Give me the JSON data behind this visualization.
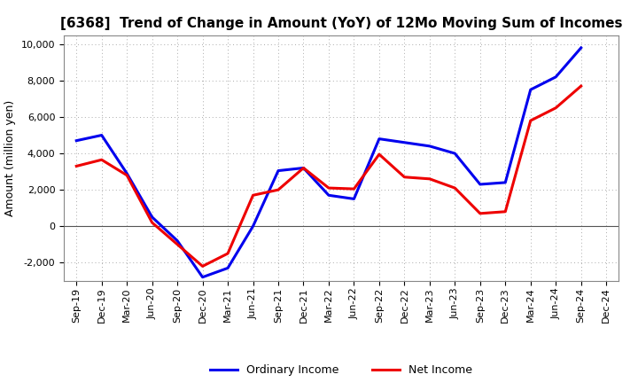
{
  "title": "[6368]  Trend of Change in Amount (YoY) of 12Mo Moving Sum of Incomes",
  "ylabel": "Amount (million yen)",
  "labels": [
    "Sep-19",
    "Dec-19",
    "Mar-20",
    "Jun-20",
    "Sep-20",
    "Dec-20",
    "Mar-21",
    "Jun-21",
    "Sep-21",
    "Dec-21",
    "Mar-22",
    "Jun-22",
    "Sep-22",
    "Dec-22",
    "Mar-23",
    "Jun-23",
    "Sep-23",
    "Dec-23",
    "Mar-24",
    "Jun-24",
    "Sep-24",
    "Dec-24"
  ],
  "ordinary_income": [
    4700,
    5000,
    2900,
    500,
    -800,
    -2800,
    -2300,
    0,
    3050,
    3200,
    1700,
    1500,
    4800,
    4600,
    4400,
    4000,
    2300,
    2400,
    7500,
    8200,
    9800,
    null
  ],
  "net_income": [
    3300,
    3650,
    2800,
    200,
    -1000,
    -2200,
    -1500,
    1700,
    2000,
    3200,
    2100,
    2050,
    3950,
    2700,
    2600,
    2100,
    700,
    800,
    5800,
    6500,
    7700,
    null
  ],
  "ordinary_color": "#0000EE",
  "net_color": "#EE0000",
  "ylim": [
    -3000,
    10500
  ],
  "yticks": [
    -2000,
    0,
    2000,
    4000,
    6000,
    8000,
    10000
  ],
  "background_color": "#FFFFFF",
  "plot_bg_color": "#FFFFFF",
  "grid_color": "#AAAAAA",
  "spine_color": "#888888",
  "legend_labels": [
    "Ordinary Income",
    "Net Income"
  ],
  "title_fontsize": 11,
  "axis_label_fontsize": 9,
  "tick_fontsize": 8,
  "legend_fontsize": 9,
  "linewidth": 2.2
}
